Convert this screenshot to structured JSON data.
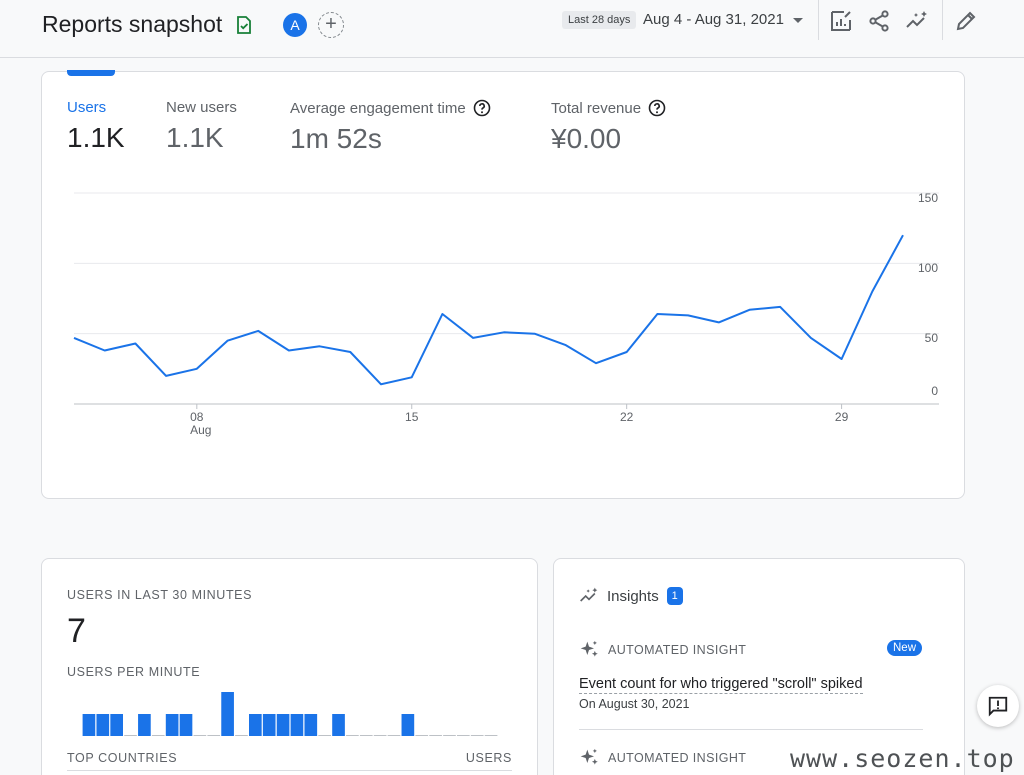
{
  "header": {
    "title": "Reports snapshot",
    "avatar_letter": "A",
    "date_chip": "Last 28 days",
    "date_range": "Aug 4 - Aug 31, 2021",
    "icons": [
      "customize-report-icon",
      "share-icon",
      "insights-sparkle-icon",
      "edit-pencil-icon"
    ]
  },
  "metrics": [
    {
      "label": "Users",
      "value": "1.1K",
      "active": true
    },
    {
      "label": "New users",
      "value": "1.1K",
      "active": false
    },
    {
      "label": "Average engagement time",
      "value": "1m 52s",
      "active": false,
      "help": true
    },
    {
      "label": "Total revenue",
      "value": "¥0.00",
      "active": false,
      "help": true
    }
  ],
  "chart_data": {
    "type": "line",
    "series": [
      {
        "values": [
          47,
          38,
          43,
          20,
          25,
          45,
          52,
          38,
          41,
          37,
          14,
          19,
          64,
          47,
          51,
          50,
          42,
          29,
          37,
          64,
          63,
          58,
          67,
          69,
          47,
          32,
          80,
          120
        ]
      }
    ],
    "x_ticks": [
      {
        "index": 4,
        "label": "08",
        "sublabel": "Aug"
      },
      {
        "index": 11,
        "label": "15"
      },
      {
        "index": 18,
        "label": "22"
      },
      {
        "index": 25,
        "label": "29"
      }
    ],
    "y_ticks": [
      0,
      50,
      100,
      150
    ],
    "ylim": [
      0,
      150
    ],
    "line_color": "#1a73e8",
    "grid": true
  },
  "realtime": {
    "title": "USERS IN LAST 30 MINUTES",
    "value": "7",
    "subtitle": "USERS PER MINUTE",
    "per_minute": [
      1,
      1,
      1,
      0,
      1,
      0,
      1,
      1,
      0,
      0,
      2,
      0,
      1,
      1,
      1,
      1,
      1,
      0,
      1,
      0,
      0,
      0,
      0,
      1,
      0,
      0,
      0,
      0,
      0,
      0
    ],
    "top_countries_label": "TOP COUNTRIES",
    "users_label": "USERS",
    "bar_color": "#1a73e8"
  },
  "insights": {
    "title": "Insights",
    "count": "1",
    "items": [
      {
        "kind": "AUTOMATED INSIGHT",
        "badge": "New",
        "headline": "Event count for who triggered \"scroll\" spiked",
        "date": "On August 30, 2021"
      },
      {
        "kind": "AUTOMATED INSIGHT"
      }
    ]
  },
  "watermark": "www.seozen.top"
}
